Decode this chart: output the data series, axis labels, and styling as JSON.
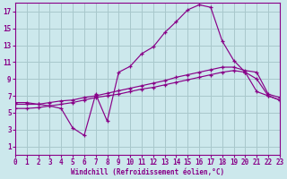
{
  "xlabel": "Windchill (Refroidissement éolien,°C)",
  "background_color": "#cce8ec",
  "grid_color": "#a8c8cc",
  "line_color": "#880088",
  "xlim": [
    0,
    23
  ],
  "ylim": [
    0,
    18
  ],
  "xticks": [
    0,
    1,
    2,
    3,
    4,
    5,
    6,
    7,
    8,
    9,
    10,
    11,
    12,
    13,
    14,
    15,
    16,
    17,
    18,
    19,
    20,
    21,
    22,
    23
  ],
  "yticks": [
    1,
    3,
    5,
    7,
    9,
    11,
    13,
    15,
    17
  ],
  "line1_x": [
    0,
    1,
    2,
    3,
    4,
    5,
    6,
    7,
    8,
    9,
    10,
    11,
    12,
    13,
    14,
    15,
    16,
    17,
    18,
    19,
    20,
    21,
    22,
    23
  ],
  "line1_y": [
    6.2,
    6.2,
    6.0,
    5.8,
    5.5,
    3.2,
    2.3,
    7.2,
    4.0,
    9.8,
    10.5,
    12.0,
    12.8,
    14.5,
    15.8,
    17.2,
    17.8,
    17.5,
    13.5,
    11.2,
    9.8,
    7.5,
    7.0,
    6.5
  ],
  "line2_x": [
    0,
    1,
    2,
    3,
    4,
    5,
    6,
    7,
    8,
    9,
    10,
    11,
    12,
    13,
    14,
    15,
    16,
    17,
    18,
    19,
    20,
    21,
    22,
    23
  ],
  "line2_y": [
    6.0,
    6.0,
    6.0,
    6.2,
    6.4,
    6.5,
    6.8,
    7.0,
    7.3,
    7.6,
    7.9,
    8.2,
    8.5,
    8.8,
    9.2,
    9.5,
    9.8,
    10.1,
    10.4,
    10.4,
    10.0,
    9.8,
    7.2,
    6.8
  ],
  "line3_x": [
    0,
    1,
    2,
    3,
    4,
    5,
    6,
    7,
    8,
    9,
    10,
    11,
    12,
    13,
    14,
    15,
    16,
    17,
    18,
    19,
    20,
    21,
    22,
    23
  ],
  "line3_y": [
    5.5,
    5.5,
    5.6,
    5.8,
    6.0,
    6.2,
    6.5,
    6.8,
    7.0,
    7.2,
    7.5,
    7.8,
    8.0,
    8.3,
    8.6,
    8.9,
    9.2,
    9.5,
    9.8,
    10.0,
    9.8,
    9.0,
    7.0,
    6.5
  ]
}
